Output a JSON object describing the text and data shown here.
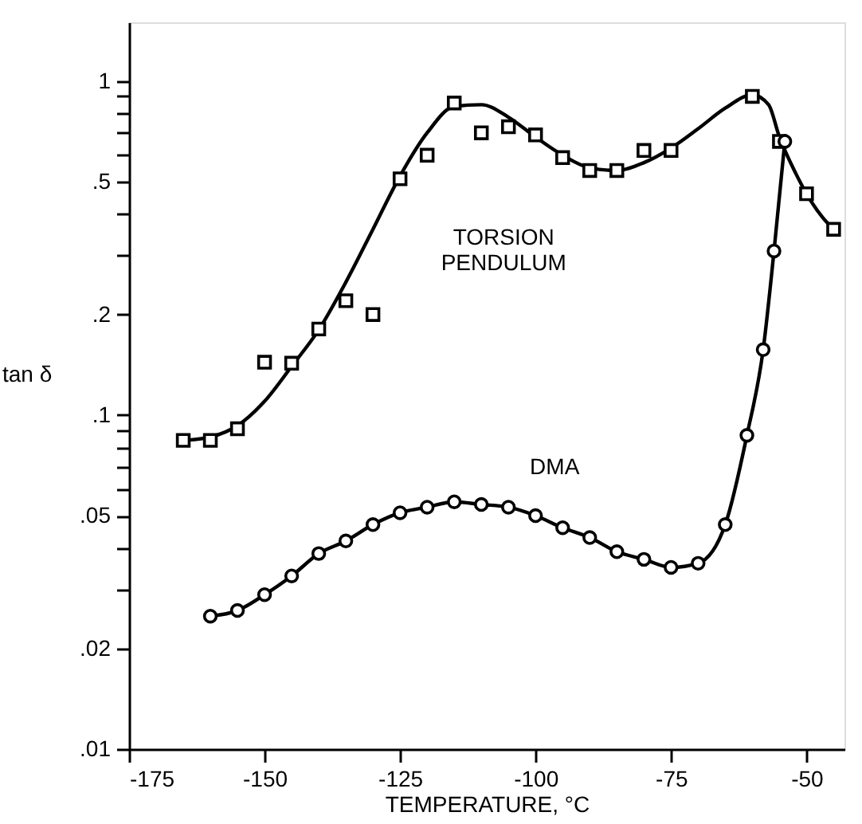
{
  "chart_data": {
    "type": "line",
    "xlabel": "TEMPERATURE, °C",
    "ylabel": "tan δ",
    "log": "y",
    "grid": false,
    "xlim": [
      -175,
      -43
    ],
    "xticks": [
      -175,
      -150,
      -125,
      -100,
      -75,
      -50
    ],
    "ylim": [
      0.01,
      1.5
    ],
    "yticks": [
      {
        "value": 0.01,
        "label": ".01"
      },
      {
        "value": 0.02,
        "label": ".02"
      },
      {
        "value": 0.03,
        "label": null
      },
      {
        "value": 0.04,
        "label": null
      },
      {
        "value": 0.05,
        "label": ".05"
      },
      {
        "value": 0.06,
        "label": null
      },
      {
        "value": 0.07,
        "label": null
      },
      {
        "value": 0.08,
        "label": null
      },
      {
        "value": 0.09,
        "label": null
      },
      {
        "value": 0.1,
        "label": ".1"
      },
      {
        "value": 0.2,
        "label": ".2"
      },
      {
        "value": 0.3,
        "label": null
      },
      {
        "value": 0.4,
        "label": null
      },
      {
        "value": 0.5,
        "label": ".5"
      },
      {
        "value": 0.6,
        "label": null
      },
      {
        "value": 0.7,
        "label": null
      },
      {
        "value": 0.8,
        "label": null
      },
      {
        "value": 0.9,
        "label": null
      },
      1
    ],
    "series": [
      {
        "marker": "none",
        "line_style": "solid",
        "color": "#000000",
        "x": [
          -165,
          -160,
          -155,
          -150,
          -145,
          -140,
          -135,
          -130,
          -125,
          -120,
          -115,
          -110,
          -105,
          -100,
          -95,
          -90,
          -85,
          -80,
          -75,
          -70,
          -65,
          -60,
          -57,
          -55,
          -52,
          -50,
          -47,
          -45
        ],
        "values": [
          0.084,
          0.086,
          0.093,
          0.11,
          0.14,
          0.18,
          0.25,
          0.36,
          0.52,
          0.7,
          0.84,
          0.85,
          0.78,
          0.68,
          0.6,
          0.55,
          0.54,
          0.57,
          0.63,
          0.72,
          0.83,
          0.91,
          0.85,
          0.68,
          0.53,
          0.46,
          0.39,
          0.36
        ]
      },
      {
        "type": "scatter",
        "name": "TORSION PENDULUM",
        "marker": "square",
        "color": "#000000",
        "x": [
          -165,
          -160,
          -155,
          -150,
          -145,
          -140,
          -135,
          -130,
          -125,
          -120,
          -115,
          -110,
          -105,
          -100,
          -95,
          -90,
          -85,
          -80,
          -75,
          -60,
          -55,
          -50,
          -45
        ],
        "values": [
          0.084,
          0.084,
          0.091,
          0.144,
          0.143,
          0.181,
          0.22,
          0.2,
          0.51,
          0.6,
          0.86,
          0.7,
          0.73,
          0.69,
          0.59,
          0.54,
          0.54,
          0.62,
          0.62,
          0.9,
          0.66,
          0.46,
          0.36
        ]
      },
      {
        "name": "DMA",
        "marker": "circle",
        "line_style": "solid",
        "color": "#000000",
        "x": [
          -160,
          -155,
          -150,
          -145,
          -140,
          -135,
          -130,
          -125,
          -120,
          -115,
          -110,
          -105,
          -100,
          -95,
          -90,
          -85,
          -80,
          -75,
          -70,
          -65,
          -61,
          -58,
          -56,
          -54
        ],
        "values": [
          0.025,
          0.026,
          0.029,
          0.033,
          0.0385,
          0.042,
          0.047,
          0.051,
          0.053,
          0.055,
          0.054,
          0.053,
          0.05,
          0.046,
          0.043,
          0.039,
          0.037,
          0.035,
          0.036,
          0.047,
          0.087,
          0.157,
          0.31,
          0.66
        ]
      }
    ]
  }
}
